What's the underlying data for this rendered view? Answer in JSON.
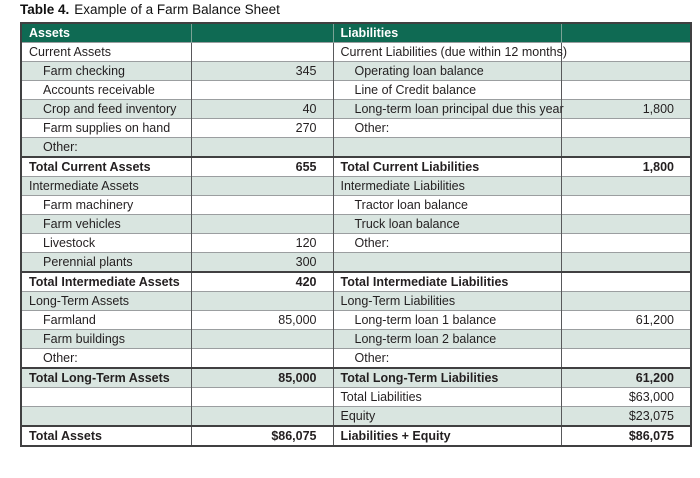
{
  "title": {
    "label": "Table 4.",
    "text": "Example of a Farm Balance Sheet"
  },
  "colors": {
    "header_bg": "#0f6a53",
    "header_text": "#ffffff",
    "row_band_bg": "#d9e5e0",
    "body_text": "#231f20",
    "border_dark": "#404041"
  },
  "header": {
    "assets": "Assets",
    "liabilities": "Liabilities"
  },
  "rows": [
    {
      "a": "Current Assets",
      "av": "",
      "l": "Current Liabilities (due within 12 months)",
      "lv": ""
    },
    {
      "a": "Farm checking",
      "av": "345",
      "l": "Operating loan balance",
      "lv": ""
    },
    {
      "a": "Accounts receivable",
      "av": "",
      "l": "Line of Credit balance",
      "lv": ""
    },
    {
      "a": "Crop and feed inventory",
      "av": "40",
      "l": "Long-term loan principal due this year",
      "lv": "1,800"
    },
    {
      "a": "Farm supplies on hand",
      "av": "270",
      "l": "Other:",
      "lv": ""
    },
    {
      "a": "Other:",
      "av": "",
      "l": "",
      "lv": ""
    },
    {
      "a": "Total Current Assets",
      "av": "655",
      "l": "Total Current Liabilities",
      "lv": "1,800"
    },
    {
      "a": "Intermediate Assets",
      "av": "",
      "l": "Intermediate Liabilities",
      "lv": ""
    },
    {
      "a": "Farm machinery",
      "av": "",
      "l": "Tractor loan balance",
      "lv": ""
    },
    {
      "a": "Farm vehicles",
      "av": "",
      "l": "Truck loan balance",
      "lv": ""
    },
    {
      "a": "Livestock",
      "av": "120",
      "l": "Other:",
      "lv": ""
    },
    {
      "a": "Perennial plants",
      "av": "300",
      "l": "",
      "lv": ""
    },
    {
      "a": "Total Intermediate Assets",
      "av": "420",
      "l": "Total Intermediate Liabilities",
      "lv": ""
    },
    {
      "a": "Long-Term Assets",
      "av": "",
      "l": "Long-Term Liabilities",
      "lv": ""
    },
    {
      "a": "Farmland",
      "av": "85,000",
      "l": "Long-term loan 1 balance",
      "lv": "61,200"
    },
    {
      "a": "Farm buildings",
      "av": "",
      "l": "Long-term loan 2 balance",
      "lv": ""
    },
    {
      "a": "Other:",
      "av": "",
      "l": "Other:",
      "lv": ""
    },
    {
      "a": "Total Long-Term Assets",
      "av": "85,000",
      "l": "Total Long-Term Liabilities",
      "lv": "61,200"
    },
    {
      "a": "",
      "av": "",
      "l": "Total Liabilities",
      "lv": "$63,000"
    },
    {
      "a": "",
      "av": "",
      "l": "Equity",
      "lv": "$23,075"
    },
    {
      "a": "Total Assets",
      "av": "$86,075",
      "l": "Liabilities + Equity",
      "lv": "$86,075"
    }
  ]
}
